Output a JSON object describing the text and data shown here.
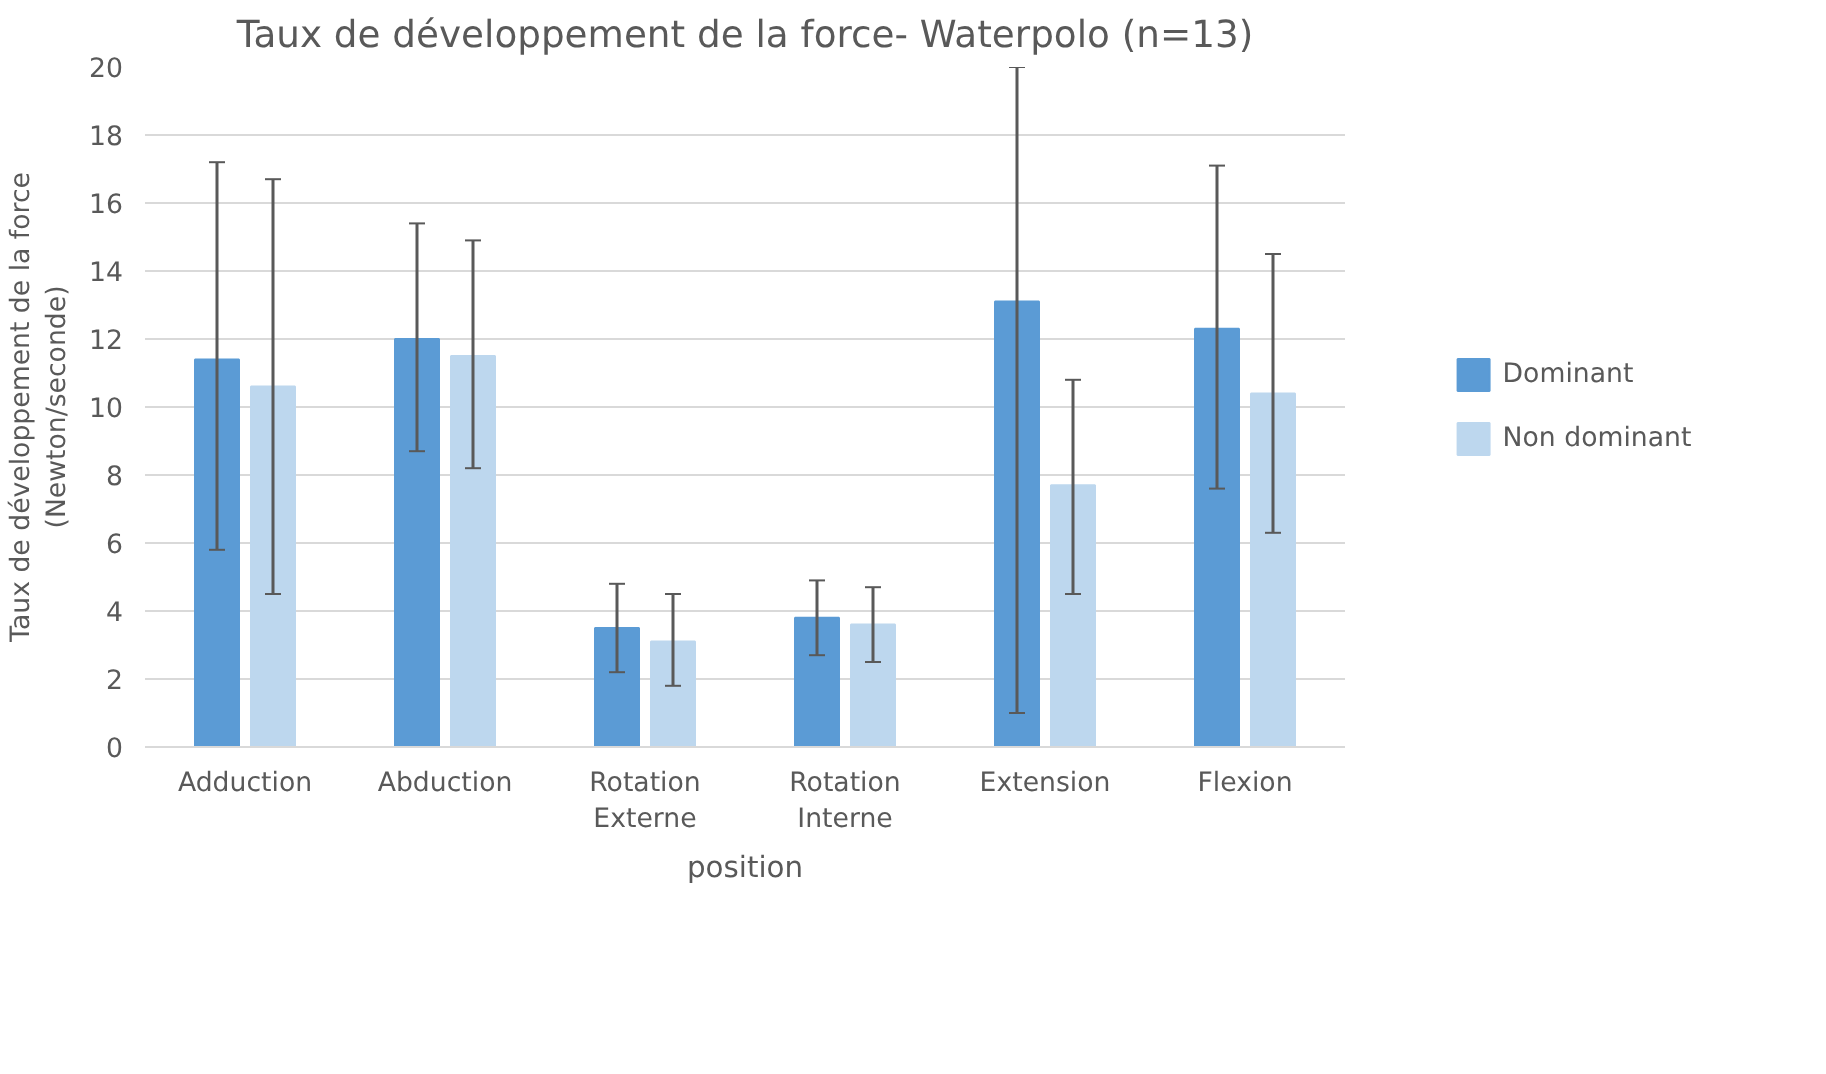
{
  "chart_data": {
    "type": "bar",
    "title": "Taux de développement de la force- Waterpolo (n=13)",
    "xlabel": "position",
    "ylabel": "Taux de développement de la force (Newton/seconde)",
    "categories": [
      "Adduction",
      "Abduction",
      "Rotation Externe",
      "Rotation Interne",
      "Extension",
      "Flexion"
    ],
    "series": [
      {
        "name": "Dominant",
        "color": "#5b9bd5",
        "values": [
          11.4,
          12.0,
          3.5,
          3.8,
          13.1,
          12.3
        ],
        "errors": [
          [
            5.8,
            17.2
          ],
          [
            8.7,
            15.4
          ],
          [
            2.2,
            4.8
          ],
          [
            2.7,
            4.9
          ],
          [
            1.0,
            20.0
          ],
          [
            7.6,
            17.1
          ]
        ]
      },
      {
        "name": "Non dominant",
        "color": "#bdd7ee",
        "values": [
          10.6,
          11.5,
          3.1,
          3.6,
          7.7,
          10.4
        ],
        "errors": [
          [
            4.5,
            16.7
          ],
          [
            8.2,
            14.9
          ],
          [
            1.8,
            4.5
          ],
          [
            2.5,
            4.7
          ],
          [
            4.5,
            10.8
          ],
          [
            6.3,
            14.5
          ]
        ]
      }
    ],
    "ylim": [
      0,
      20
    ],
    "yticks": [
      0,
      2,
      4,
      6,
      8,
      10,
      12,
      14,
      16,
      18,
      20
    ],
    "grid": "y",
    "legend": "right"
  }
}
